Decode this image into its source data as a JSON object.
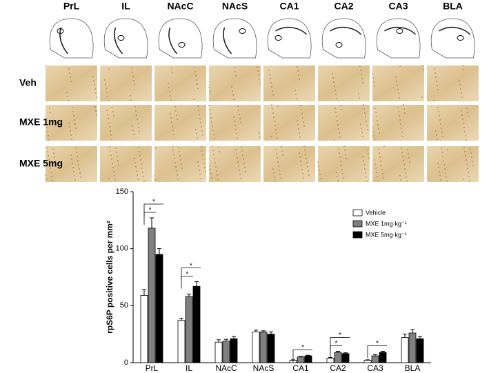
{
  "panel": {
    "columns": [
      "PrL",
      "IL",
      "NAcC",
      "NAcS",
      "CA1",
      "CA2",
      "CA3",
      "BLA"
    ],
    "rows": [
      "Veh",
      "MXE 1mg",
      "MXE 5mg"
    ]
  },
  "chart_data": {
    "type": "bar",
    "y_label": "rpS6P positive cells per mm²",
    "categories": [
      "PrL",
      "IL",
      "NAcC",
      "NAcS",
      "CA1",
      "CA2",
      "CA3",
      "BLA"
    ],
    "series": [
      {
        "name": "Vehicle",
        "color": "#ffffff",
        "values": [
          59,
          37,
          18,
          27,
          2,
          4,
          2,
          22
        ],
        "errors": [
          5,
          2,
          2,
          1.5,
          0.5,
          0.5,
          0.5,
          3
        ]
      },
      {
        "name": "MXE 1mg·kg⁻¹",
        "color": "#808080",
        "values": [
          118,
          58,
          19,
          27,
          5,
          9,
          6,
          26
        ],
        "errors": [
          9,
          2,
          1.5,
          1,
          0.5,
          1,
          1,
          3
        ]
      },
      {
        "name": "MXE 5mg·kg⁻¹",
        "color": "#000000",
        "values": [
          95,
          67,
          21,
          25,
          6,
          8,
          9,
          21
        ],
        "errors": [
          5,
          4,
          2,
          2,
          0.5,
          0.7,
          1,
          2
        ]
      }
    ],
    "ylim": [
      0,
      150
    ],
    "yticks": [
      0,
      50,
      100,
      150
    ],
    "legend": "upper right",
    "annotations": [
      {
        "text": "*",
        "category": 0,
        "compare": [
          0,
          2
        ]
      },
      {
        "text": "*",
        "category": 0,
        "compare": [
          0,
          1
        ]
      },
      {
        "text": "*",
        "category": 1,
        "compare": [
          0,
          2
        ]
      },
      {
        "text": "*",
        "category": 1,
        "compare": [
          0,
          1
        ]
      },
      {
        "text": "*",
        "category": 4,
        "compare": [
          0,
          2
        ]
      },
      {
        "text": "*",
        "category": 5,
        "compare": [
          0,
          2
        ]
      },
      {
        "text": "*",
        "category": 5,
        "compare": [
          0,
          1
        ]
      },
      {
        "text": "*",
        "category": 6,
        "compare": [
          0,
          2
        ]
      }
    ]
  }
}
